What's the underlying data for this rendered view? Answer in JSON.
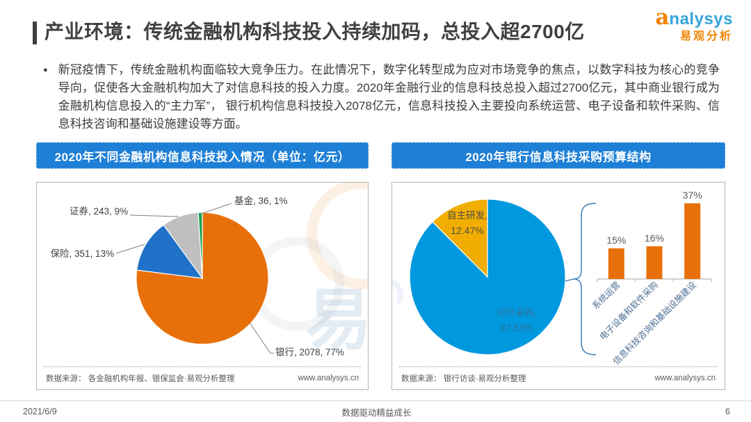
{
  "header": {
    "title": "产业环境：传统金融机构科技投入持续加码，总投入超2700亿",
    "logo": {
      "mark": "a",
      "brand_rest": "nalysys",
      "brand_cn": "易观分析"
    }
  },
  "intro": {
    "bullet": "●",
    "text": "新冠疫情下，传统金融机构面临较大竞争压力。在此情况下，数字化转型成为应对市场竞争的焦点，以数字科技为核心的竞争导向，促使各大金融机构加大了对信息科技的投入力度。2020年金融行业的信息科技总投入超过2700亿元，其中商业银行成为金融机构信息投入的“主力军”， 银行机构信息科技投入2078亿元，信息科技投入主要投向系统运营、电子设备和软件采购、信息科技咨询和基础设施建设等方面。"
  },
  "left_panel": {
    "banner": "2020年不同金融机构信息科技投入情况（单位：亿元）",
    "source": "数据来源： 各金融机构年报、银保监会·易观分析整理",
    "website": "www.analysys.cn"
  },
  "right_panel": {
    "banner": "2020年银行信息科技采购预算结构",
    "source": "数据来源： 银行访谈·易观分析整理",
    "website": "www.analysys.cn"
  },
  "footer": {
    "date": "2021/6/9",
    "slogan": "数据驱动精益成长",
    "page": "6"
  },
  "watermark": {
    "text_cn": "易观",
    "text_en": "ysys"
  },
  "chart_data": [
    {
      "type": "pie",
      "title": "2020年不同金融机构信息科技投入情况",
      "unit": "亿元",
      "labels": [
        "银行",
        "保险",
        "证券",
        "基金"
      ],
      "values": [
        2078,
        351,
        243,
        36
      ],
      "percents": [
        77,
        13,
        9,
        1
      ],
      "colors": [
        "#E8700A",
        "#1F72C8",
        "#BFBFBF",
        "#17A353"
      ],
      "layout": "start at 12 o'clock, clockwise, outside labels with leader lines"
    },
    {
      "type": "pie",
      "title": "2020年银行信息科技采购预算结构",
      "labels": [
        "对外采购",
        "自主研发"
      ],
      "values": [
        87.53,
        12.47
      ],
      "colors": [
        "#0098DF",
        "#F2AE00"
      ],
      "layout": "start at 12 o'clock, clockwise, labels inside slices"
    },
    {
      "type": "bar",
      "categories": [
        "系统运营",
        "电子设备和软件采购",
        "信息科技咨询和基础设施建设"
      ],
      "values": [
        15,
        16,
        37
      ],
      "unit": "%",
      "value_labels": [
        "15%",
        "16%",
        "37%"
      ],
      "color": "#E8700A",
      "layout": "linked to 对外采购 slice by curly brace, 45° rotated category labels"
    }
  ]
}
